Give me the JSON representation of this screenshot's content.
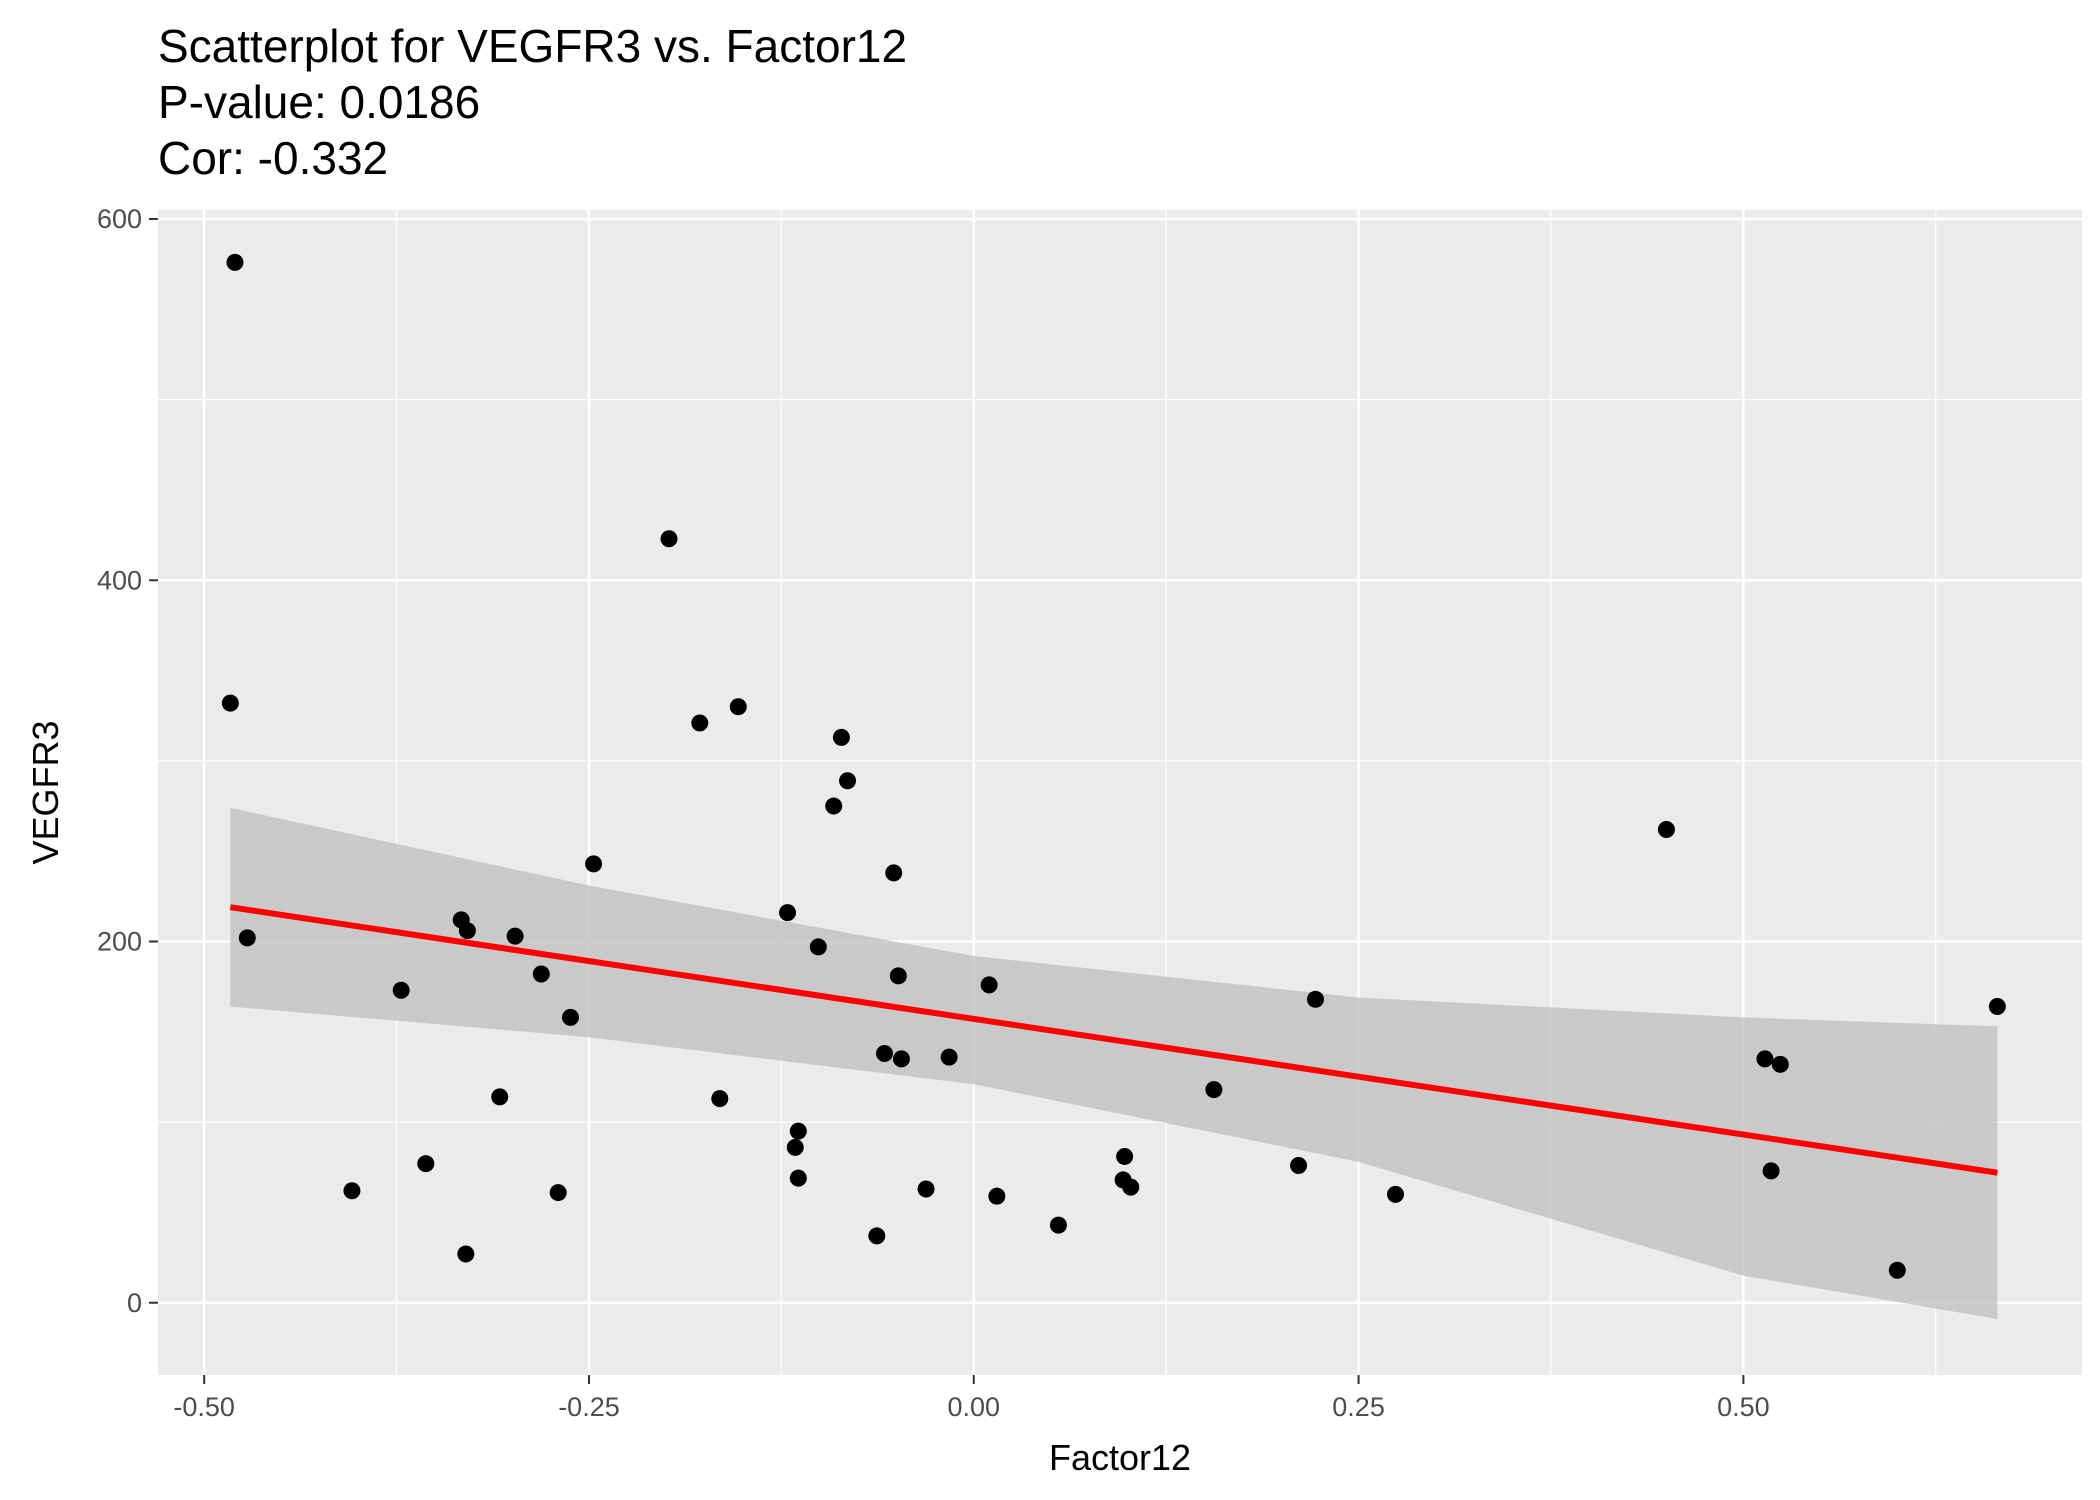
{
  "chart_data": {
    "type": "scatter",
    "title": [
      "Scatterplot for VEGFR3 vs. Factor12",
      "P-value: 0.0186",
      "Cor: -0.332"
    ],
    "xlabel": "Factor12",
    "ylabel": "VEGFR3",
    "xlim": [
      -0.53,
      0.72
    ],
    "ylim": [
      -40,
      605
    ],
    "x_ticks": [
      -0.5,
      -0.25,
      0.0,
      0.25,
      0.5
    ],
    "x_tick_labels": [
      "-0.50",
      "-0.25",
      "0.00",
      "0.25",
      "0.50"
    ],
    "y_ticks": [
      0,
      200,
      400,
      600
    ],
    "y_tick_labels": [
      "0",
      "200",
      "400",
      "600"
    ],
    "grid": true,
    "colors": {
      "panel": "#ebebeb",
      "grid": "#ffffff",
      "point": "#000000",
      "fit_line": "#ff0000",
      "ribbon": "#c0c0c0"
    },
    "points": [
      {
        "x": -0.48,
        "y": 576
      },
      {
        "x": -0.483,
        "y": 332
      },
      {
        "x": -0.472,
        "y": 202
      },
      {
        "x": -0.404,
        "y": 62
      },
      {
        "x": -0.372,
        "y": 173
      },
      {
        "x": -0.356,
        "y": 77
      },
      {
        "x": -0.333,
        "y": 212
      },
      {
        "x": -0.329,
        "y": 206
      },
      {
        "x": -0.33,
        "y": 27
      },
      {
        "x": -0.308,
        "y": 114
      },
      {
        "x": -0.298,
        "y": 203
      },
      {
        "x": -0.281,
        "y": 182
      },
      {
        "x": -0.27,
        "y": 61
      },
      {
        "x": -0.262,
        "y": 158
      },
      {
        "x": -0.247,
        "y": 243
      },
      {
        "x": -0.198,
        "y": 423
      },
      {
        "x": -0.178,
        "y": 321
      },
      {
        "x": -0.165,
        "y": 113
      },
      {
        "x": -0.153,
        "y": 330
      },
      {
        "x": -0.121,
        "y": 216
      },
      {
        "x": -0.116,
        "y": 86
      },
      {
        "x": -0.114,
        "y": 95
      },
      {
        "x": -0.114,
        "y": 69
      },
      {
        "x": -0.101,
        "y": 197
      },
      {
        "x": -0.091,
        "y": 275
      },
      {
        "x": -0.086,
        "y": 313
      },
      {
        "x": -0.082,
        "y": 289
      },
      {
        "x": -0.063,
        "y": 37
      },
      {
        "x": -0.058,
        "y": 138
      },
      {
        "x": -0.052,
        "y": 238
      },
      {
        "x": -0.049,
        "y": 181
      },
      {
        "x": -0.047,
        "y": 135
      },
      {
        "x": -0.031,
        "y": 63
      },
      {
        "x": -0.016,
        "y": 136
      },
      {
        "x": 0.01,
        "y": 176
      },
      {
        "x": 0.015,
        "y": 59
      },
      {
        "x": 0.055,
        "y": 43
      },
      {
        "x": 0.097,
        "y": 68
      },
      {
        "x": 0.098,
        "y": 81
      },
      {
        "x": 0.102,
        "y": 64
      },
      {
        "x": 0.156,
        "y": 118
      },
      {
        "x": 0.211,
        "y": 76
      },
      {
        "x": 0.222,
        "y": 168
      },
      {
        "x": 0.274,
        "y": 60
      },
      {
        "x": 0.45,
        "y": 262
      },
      {
        "x": 0.514,
        "y": 135
      },
      {
        "x": 0.518,
        "y": 73
      },
      {
        "x": 0.524,
        "y": 132
      },
      {
        "x": 0.6,
        "y": 18
      },
      {
        "x": 0.665,
        "y": 164
      }
    ],
    "fit_line": {
      "x": [
        -0.483,
        0.665
      ],
      "y": [
        219,
        72
      ]
    },
    "confidence_band": {
      "x": [
        -0.483,
        -0.25,
        0.0,
        0.25,
        0.5,
        0.665
      ],
      "upper": [
        274,
        231,
        192,
        169,
        158,
        153
      ],
      "lower": [
        164,
        147,
        121,
        78,
        15,
        -9
      ]
    }
  }
}
